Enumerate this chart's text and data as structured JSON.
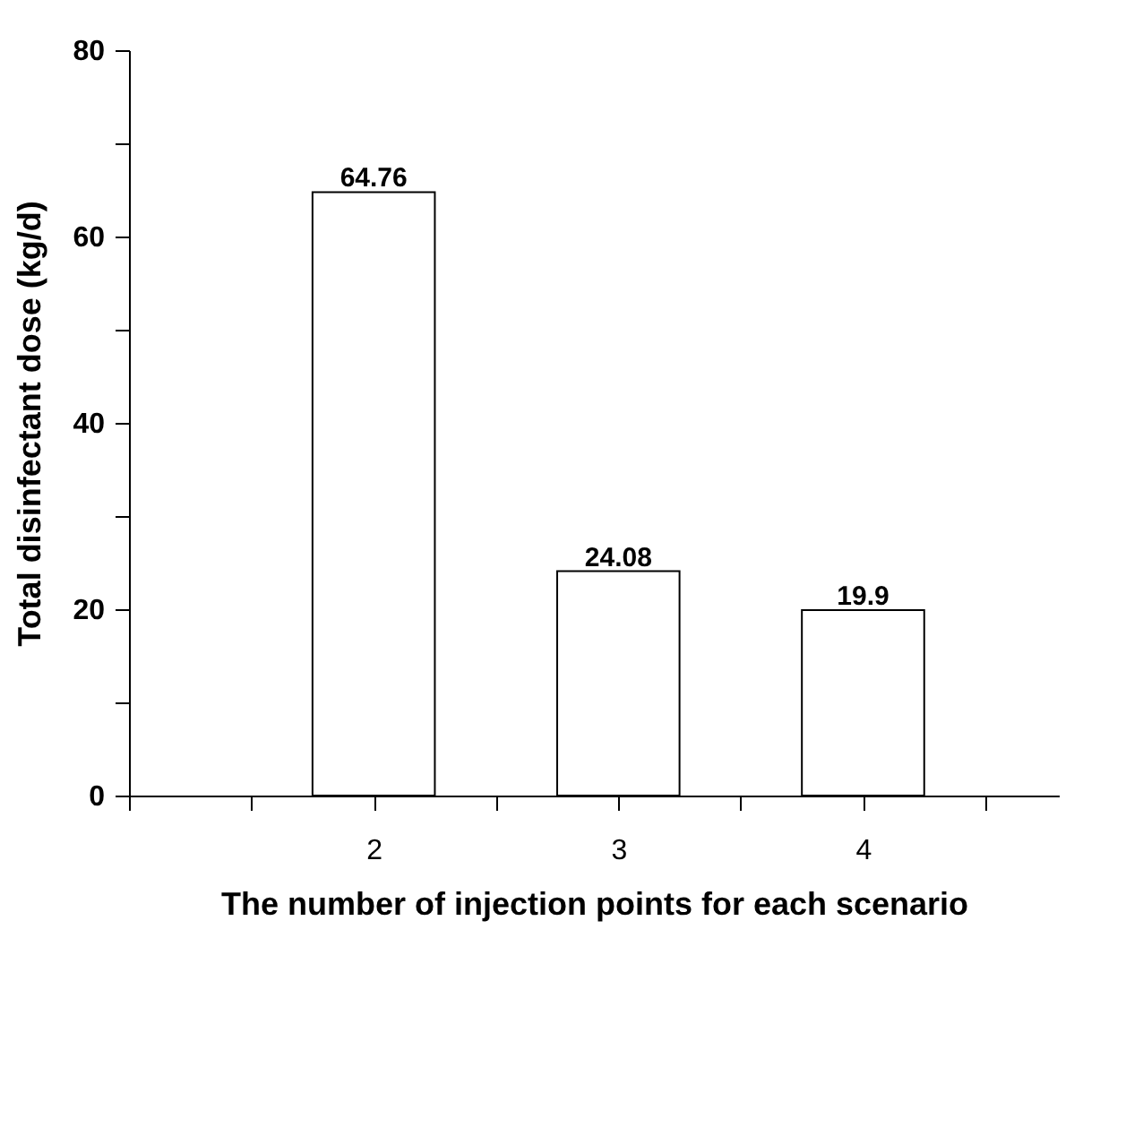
{
  "chart_data": {
    "type": "bar",
    "xlabel": "The number of injection points for each scenario",
    "ylabel": "Total disinfectant dose (kg/d)",
    "x": [
      2,
      3,
      4
    ],
    "values": [
      64.76,
      24.08,
      19.9
    ],
    "color": "#000000",
    "data_labels": true,
    "value_labels": [
      "64.76",
      "24.08",
      "19.9"
    ],
    "xlim": [
      1,
      4.8
    ],
    "xticks": [
      {
        "value": 1,
        "label": null
      },
      {
        "value": 1.5,
        "label": null
      },
      2,
      {
        "value": 2.5,
        "label": null
      },
      3,
      {
        "value": 3.5,
        "label": null
      },
      4,
      {
        "value": 4.5,
        "label": null
      }
    ],
    "ylim": [
      0,
      80
    ],
    "yticks": [
      0,
      {
        "value": 10,
        "label": null
      },
      20,
      {
        "value": 30,
        "label": null
      },
      40,
      {
        "value": 50,
        "label": null
      },
      60,
      {
        "value": 70,
        "label": null
      },
      80
    ],
    "grid": false
  }
}
